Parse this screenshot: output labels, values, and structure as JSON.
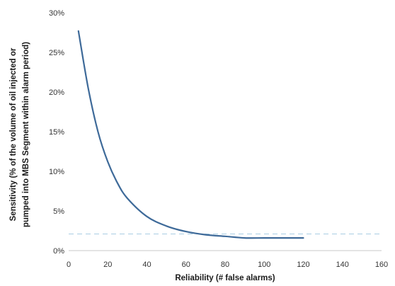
{
  "chart_data": {
    "type": "line",
    "title": "",
    "xlabel": "Reliability (# false alarms)",
    "ylabel_line1": "Sensitivity (% of the volume of oil injected or",
    "ylabel_line2": "pumped into MBS Segment within alarm period)",
    "xlim": [
      0,
      160
    ],
    "ylim": [
      0,
      30
    ],
    "x_ticks": [
      "0",
      "20",
      "40",
      "60",
      "80",
      "100",
      "120",
      "140",
      "160"
    ],
    "y_ticks": [
      "0%",
      "5%",
      "10%",
      "15%",
      "20%",
      "25%",
      "30%"
    ],
    "grid": false,
    "series": [
      {
        "color": "#3e6a99",
        "x": [
          5,
          10,
          15,
          20,
          25,
          30,
          40,
          50,
          60,
          70,
          80,
          90,
          100,
          110,
          120
        ],
        "y": [
          27.7,
          20.5,
          15.0,
          11.2,
          8.5,
          6.6,
          4.3,
          3.1,
          2.4,
          2.0,
          1.8,
          1.6,
          1.6,
          1.6,
          1.6
        ]
      }
    ],
    "reference_line": {
      "y": 2.1,
      "style": "dashed",
      "color": "#a9cde3"
    },
    "colors": {
      "axis": "#c8c8c8",
      "text": "#333333"
    }
  }
}
